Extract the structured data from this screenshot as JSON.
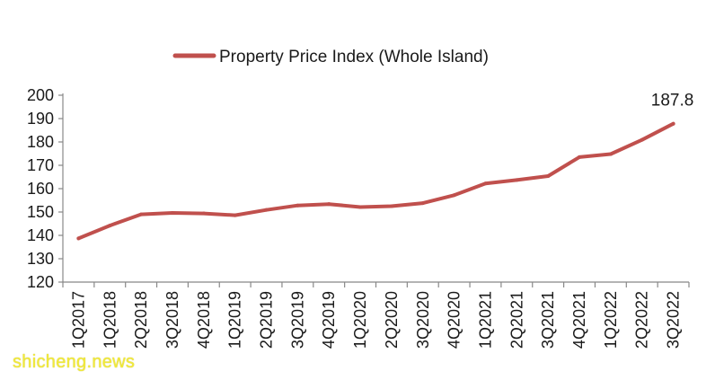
{
  "colors": {
    "series": "#c0504d",
    "axis": "#888888",
    "text": "#1a1a1a",
    "watermark": "#f2ea3a"
  },
  "legend": {
    "label": "Property Price Index (Whole Island)"
  },
  "watermark": {
    "text": "shicheng.news"
  },
  "chart_data": {
    "type": "line",
    "title": "",
    "xlabel": "",
    "ylabel": "",
    "ylim": [
      120,
      200
    ],
    "yticks": [
      120,
      130,
      140,
      150,
      160,
      170,
      180,
      190,
      200
    ],
    "grid": false,
    "legend_position": "top-center",
    "categories": [
      "1Q2017",
      "1Q2018",
      "2Q2018",
      "3Q2018",
      "4Q2018",
      "1Q2019",
      "2Q2019",
      "3Q2019",
      "4Q2019",
      "1Q2020",
      "2Q2020",
      "3Q2020",
      "4Q2020",
      "1Q2021",
      "2Q2021",
      "3Q2021",
      "4Q2021",
      "1Q2022",
      "2Q2022",
      "3Q2022"
    ],
    "series": [
      {
        "name": "Property Price Index (Whole Island)",
        "values": [
          138.7,
          144.2,
          149.0,
          149.6,
          149.4,
          148.6,
          150.9,
          152.8,
          153.4,
          152.1,
          152.5,
          153.8,
          157.2,
          162.2,
          163.7,
          165.4,
          173.5,
          174.8,
          180.9,
          187.8
        ]
      }
    ],
    "annotations": [
      {
        "category": "3Q2022",
        "text": "187.8"
      }
    ]
  }
}
